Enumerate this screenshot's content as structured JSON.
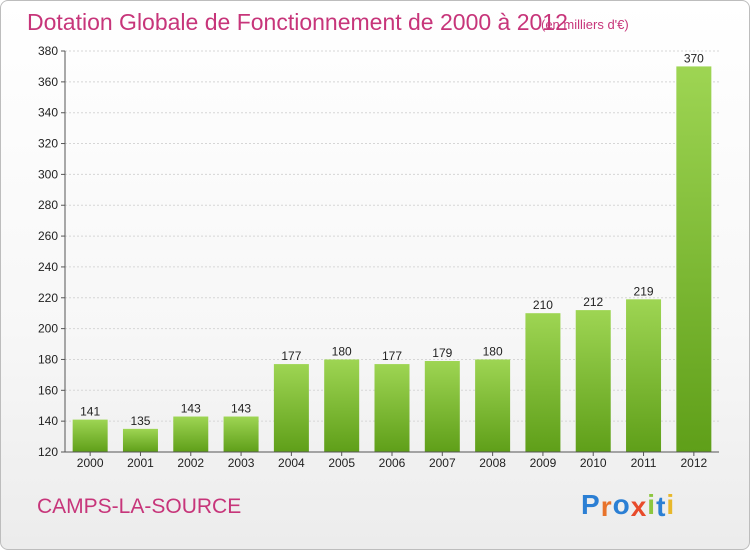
{
  "title": "Dotation Globale de Fonctionnement de 2000 à 2012",
  "subtitle": "(en milliers d'€)",
  "commune": "CAMPS-LA-SOURCE",
  "logo": {
    "text": "Proxiti",
    "colors": [
      "#2b7fd4",
      "#e8732b",
      "#2b7fd4",
      "#e84b2b",
      "#8cc63f",
      "#2b7fd4",
      "#e8b82b"
    ]
  },
  "colors": {
    "bar_top": "#9ed553",
    "bar_bottom": "#5f9f19",
    "title": "#c7357a"
  },
  "chart_data": {
    "type": "bar",
    "title": "Dotation Globale de Fonctionnement de 2000 à 2012",
    "categories": [
      "2000",
      "2001",
      "2002",
      "2003",
      "2004",
      "2005",
      "2006",
      "2007",
      "2008",
      "2009",
      "2010",
      "2011",
      "2012"
    ],
    "values": [
      141,
      135,
      143,
      143,
      177,
      180,
      177,
      179,
      180,
      210,
      212,
      219,
      370
    ],
    "ylim": [
      120,
      380
    ],
    "yticks": [
      120,
      140,
      160,
      180,
      200,
      220,
      240,
      260,
      280,
      300,
      320,
      340,
      360,
      380
    ],
    "grid": true,
    "xlabel": "",
    "ylabel": ""
  }
}
